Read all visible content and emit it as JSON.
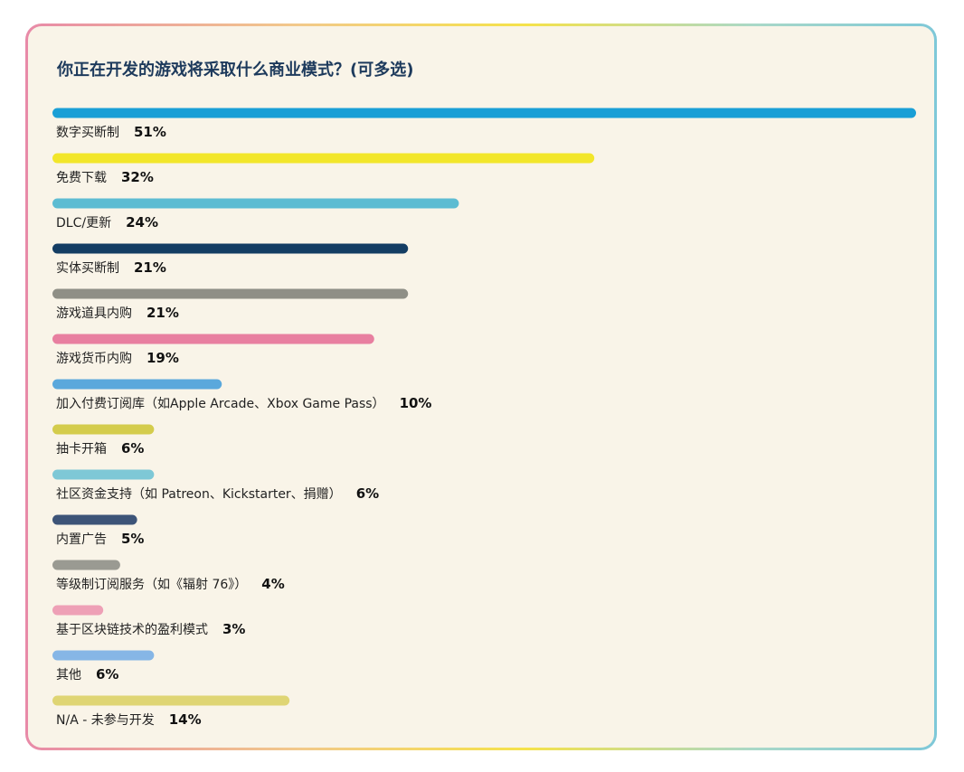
{
  "chart_data": {
    "type": "bar",
    "orientation": "horizontal",
    "title": "你正在开发的游戏将采取什么商业模式？(可多选)",
    "bars": [
      {
        "label": "数字买断制",
        "value": 51,
        "value_label": "51%",
        "color": "#1a9fd6"
      },
      {
        "label": "免费下载",
        "value": 32,
        "value_label": "32%",
        "color": "#f2e62a"
      },
      {
        "label": "DLC/更新",
        "value": 24,
        "value_label": "24%",
        "color": "#5dbcd2"
      },
      {
        "label": "实体买断制",
        "value": 21,
        "value_label": "21%",
        "color": "#143d63"
      },
      {
        "label": "游戏道具内购",
        "value": 21,
        "value_label": "21%",
        "color": "#8f8f86"
      },
      {
        "label": "游戏货币内购",
        "value": 19,
        "value_label": "19%",
        "color": "#e87fa0"
      },
      {
        "label": "加入付费订阅库（如Apple Arcade、Xbox Game Pass）",
        "value": 10,
        "value_label": "10%",
        "color": "#5aa8dc"
      },
      {
        "label": "抽卡开箱",
        "value": 6,
        "value_label": "6%",
        "color": "#d4cc4c"
      },
      {
        "label": "社区资金支持（如 Patreon、Kickstarter、捐赠）",
        "value": 6,
        "value_label": "6%",
        "color": "#7ec8d6"
      },
      {
        "label": "内置广告",
        "value": 5,
        "value_label": "5%",
        "color": "#3d5478"
      },
      {
        "label": "等级制订阅服务（如《辐射 76》）",
        "value": 4,
        "value_label": "4%",
        "color": "#9a9a92"
      },
      {
        "label": "基于区块链技术的盈利模式",
        "value": 3,
        "value_label": "3%",
        "color": "#eea0b6"
      },
      {
        "label": "其他",
        "value": 6,
        "value_label": "6%",
        "color": "#86b6e6"
      },
      {
        "label": "N/A - 未参与开发",
        "value": 14,
        "value_label": "14%",
        "color": "#dfd574"
      }
    ],
    "xlim": [
      0,
      51
    ],
    "grid": false,
    "legend": "none"
  }
}
